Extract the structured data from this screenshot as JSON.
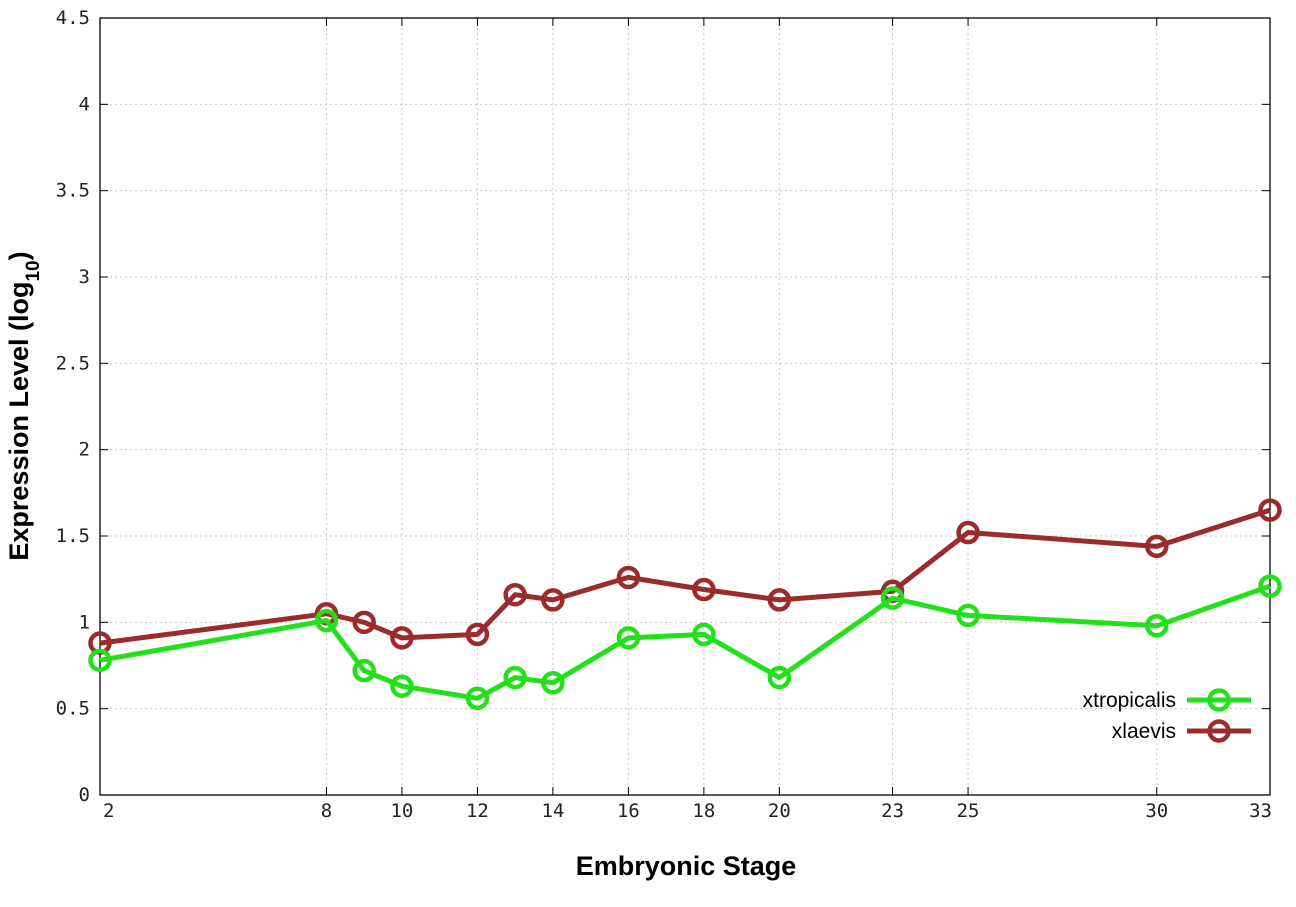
{
  "chart_data": {
    "type": "line",
    "title": "",
    "xlabel": "Embryonic Stage",
    "ylabel_main": "Expression Level (log",
    "ylabel_sub": "10",
    "ylabel_close": ")",
    "xlim": [
      2,
      33
    ],
    "ylim": [
      0,
      4.5
    ],
    "x": [
      2,
      8,
      9,
      10,
      12,
      13,
      14,
      16,
      18,
      20,
      23,
      25,
      30,
      33
    ],
    "xticks": [
      2,
      8,
      10,
      12,
      14,
      16,
      18,
      20,
      23,
      25,
      30,
      33
    ],
    "yticks": [
      0,
      0.5,
      1,
      1.5,
      2,
      2.5,
      3,
      3.5,
      4,
      4.5
    ],
    "ytick_labels": [
      "0",
      "0.5",
      "1",
      "1.5",
      "2",
      "2.5",
      "3",
      "3.5",
      "4",
      "4.5"
    ],
    "grid": true,
    "legend_position": "bottom-right",
    "series": [
      {
        "name": "xtropicalis",
        "color": "#22e01a",
        "values": [
          0.78,
          1.01,
          0.72,
          0.63,
          0.56,
          0.68,
          0.65,
          0.91,
          0.93,
          0.68,
          1.14,
          1.04,
          0.98,
          1.21
        ]
      },
      {
        "name": "xlaevis",
        "color": "#9c2b2b",
        "values": [
          0.88,
          1.05,
          1.0,
          0.91,
          0.93,
          1.16,
          1.13,
          1.26,
          1.19,
          1.13,
          1.18,
          1.52,
          1.44,
          1.65
        ]
      }
    ]
  }
}
